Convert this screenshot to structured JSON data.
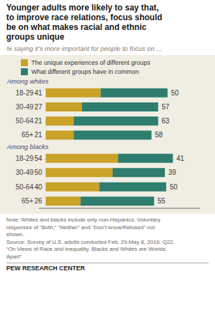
{
  "chart_data": {
    "type": "bar",
    "orientation": "horizontal",
    "stacked": true,
    "data_labels": true,
    "tick_labels": "y",
    "grid": false,
    "title": "Younger adults more likely to say that,\nto improve race relations, focus should\nbe on what makes racial and ethnic\ngroups unique",
    "subtitle": "% saying it’s more important for people to focus on ...",
    "groups": [
      {
        "label": "Among whites",
        "categories": [
          "18-29",
          "30-49",
          "50-64",
          "65+"
        ]
      },
      {
        "label": "Among blacks",
        "categories": [
          "18-29",
          "30-49",
          "50-64",
          "65+"
        ]
      }
    ],
    "series": [
      {
        "name": "The unique experiences of different groups",
        "color": "#C9A227",
        "values": [
          41,
          27,
          21,
          21,
          54,
          50,
          40,
          26
        ]
      },
      {
        "name": "What different groups have in common",
        "color": "#2E7D6E",
        "values": [
          50,
          57,
          63,
          58,
          41,
          39,
          50,
          55
        ]
      }
    ],
    "xlim": [
      -5,
      115
    ],
    "xticks": [],
    "note": "Note: Whites and blacks include only non-Hispanics. Voluntary\nresponses of “Both,” “Neither” and “Don’t know/Refused” not\nshown.\nSource: Survey of U.S. adults conducted Feb. 29-May 8, 2016. Q22.\n“On Views of Race and Inequality, Blacks and Whites are Worlds\nApart”",
    "footer": "PEW RESEARCH CENTER"
  }
}
